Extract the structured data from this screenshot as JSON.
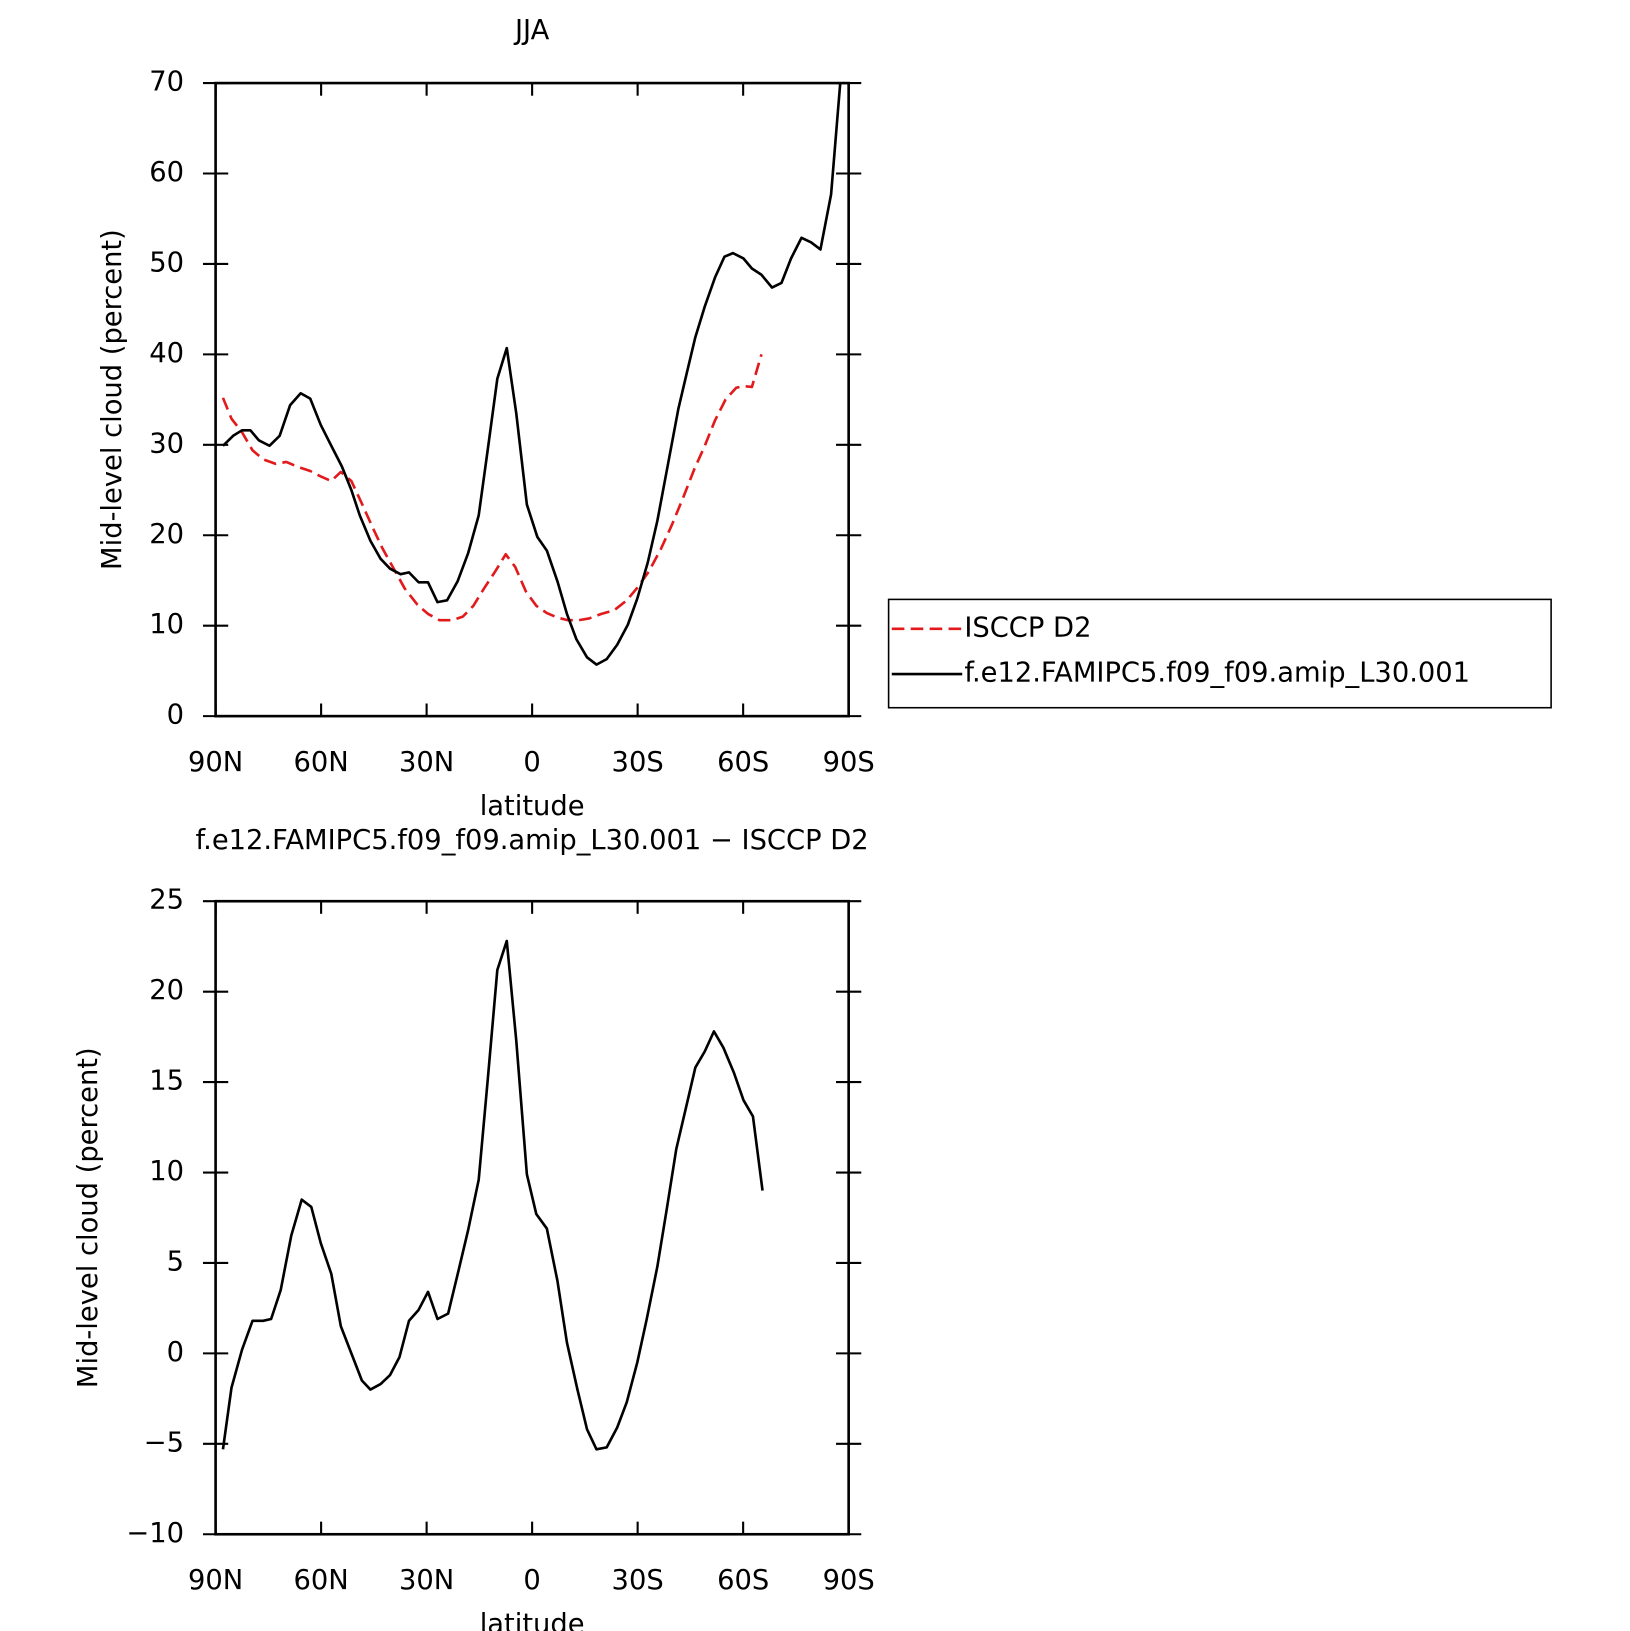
{
  "chart_data": [
    {
      "type": "line",
      "title": "JJA",
      "xlabel": "latitude",
      "ylabel": "Mid-level cloud (percent)",
      "xlim": [
        90,
        -90
      ],
      "xticks": [
        {
          "value": 90,
          "label": "90N"
        },
        {
          "value": 60,
          "label": "60N"
        },
        {
          "value": 30,
          "label": "30N"
        },
        0,
        {
          "value": -30,
          "label": "30S"
        },
        {
          "value": -60,
          "label": "60S"
        },
        {
          "value": -90,
          "label": "90S"
        }
      ],
      "ylim": [
        0,
        70
      ],
      "yticks": [
        0,
        10,
        20,
        30,
        40,
        50,
        60,
        70
      ],
      "legend": "right",
      "series": [
        {
          "name": "ISCCP D2",
          "color": "#e31a1c",
          "line_style": "dashed",
          "x": [
            87.9,
            85.5,
            82.5,
            79.5,
            76.5,
            72.9,
            69.9,
            66.9,
            63.1,
            60.1,
            57.1,
            54.4,
            51.4,
            48.4,
            45.4,
            42.5,
            39.2,
            36.2,
            32.6,
            29.6,
            26.3,
            22.7,
            19.7,
            16.7,
            13.7,
            10.5,
            7.5,
            4.8,
            1.8,
            -1.2,
            -4.2,
            -7.2,
            -10.2,
            -13.2,
            -16.2,
            -19.7,
            -23.3,
            -26.9,
            -29.9,
            -33.2,
            -36.5,
            -39.8,
            -43.1,
            -46.1,
            -49.1,
            -52.0,
            -55.0,
            -58.0,
            -60.1,
            -62.5,
            -65.2
          ],
          "values": [
            35.2,
            32.9,
            31.4,
            29.4,
            28.4,
            27.9,
            28.1,
            27.6,
            27.1,
            26.5,
            26.0,
            27.0,
            26.0,
            23.5,
            20.9,
            18.5,
            16.2,
            14.1,
            12.3,
            11.3,
            10.6,
            10.6,
            11.0,
            12.2,
            14.1,
            16.0,
            17.9,
            16.5,
            13.8,
            12.2,
            11.4,
            10.9,
            10.6,
            10.6,
            10.8,
            11.3,
            11.7,
            12.8,
            14.2,
            16.0,
            18.4,
            21.2,
            24.3,
            27.3,
            29.9,
            32.7,
            35.0,
            36.3,
            36.5,
            36.4,
            40.0
          ]
        },
        {
          "name": "f.e12.FAMIPC5.f09_f09.amip_L30.001",
          "color": "#000000",
          "line_style": "solid",
          "x": [
            87.9,
            85,
            82.5,
            80.1,
            77.7,
            74.7,
            71.8,
            68.8,
            65.8,
            63.1,
            60.1,
            57.1,
            54.1,
            51.4,
            49.0,
            46.0,
            43.1,
            40.4,
            37.4,
            35.0,
            32.3,
            29.6,
            26.9,
            24.2,
            21.2,
            18.2,
            15.2,
            12.5,
            9.9,
            7.2,
            4.5,
            1.5,
            -1.5,
            -4.2,
            -7.2,
            -9.9,
            -12.6,
            -15.6,
            -18.3,
            -21.2,
            -24.2,
            -27.2,
            -29.9,
            -32.9,
            -35.6,
            -38.6,
            -41.6,
            -44.0,
            -46.4,
            -49.1,
            -52.0,
            -54.7,
            -57.1,
            -60.1,
            -62.5,
            -65.2,
            -68.2,
            -70.9,
            -73.6,
            -76.6,
            -79.3,
            -82.0,
            -85.0,
            -87.6
          ],
          "values": [
            29.9,
            31.0,
            31.6,
            31.6,
            30.5,
            29.9,
            31.0,
            34.4,
            35.7,
            35.1,
            32.2,
            29.9,
            27.6,
            25.0,
            22.2,
            19.4,
            17.4,
            16.3,
            15.7,
            15.9,
            14.8,
            14.8,
            12.6,
            12.8,
            14.9,
            18.0,
            22.2,
            29.8,
            37.3,
            40.7,
            33.5,
            23.4,
            19.8,
            18.3,
            14.9,
            11.3,
            8.5,
            6.5,
            5.7,
            6.3,
            7.9,
            10.1,
            13.0,
            17.0,
            21.6,
            27.8,
            34.0,
            38.0,
            41.9,
            45.3,
            48.5,
            50.8,
            51.2,
            50.6,
            49.5,
            48.8,
            47.4,
            47.9,
            50.6,
            52.9,
            52.4,
            51.6,
            57.7,
            70.0
          ]
        }
      ]
    },
    {
      "type": "line",
      "title": "f.e12.FAMIPC5.f09_f09.amip_L30.001 − ISCCP D2",
      "xlabel": "latitude",
      "ylabel": "Mid-level cloud (percent)",
      "xlim": [
        90,
        -90
      ],
      "xticks": [
        {
          "value": 90,
          "label": "90N"
        },
        {
          "value": 60,
          "label": "60N"
        },
        {
          "value": 30,
          "label": "30N"
        },
        0,
        {
          "value": -30,
          "label": "30S"
        },
        {
          "value": -60,
          "label": "60S"
        },
        {
          "value": -90,
          "label": "90S"
        }
      ],
      "ylim": [
        -10,
        25
      ],
      "yticks": [
        {
          "value": -10,
          "label": "−10"
        },
        {
          "value": -5,
          "label": "−5"
        },
        0,
        5,
        10,
        15,
        20,
        25
      ],
      "color": "#000000",
      "x": [
        87.9,
        85.5,
        82.5,
        79.5,
        76.5,
        74.2,
        71.5,
        68.5,
        65.5,
        62.8,
        60.1,
        57.1,
        54.4,
        51.4,
        48.4,
        46.0,
        43.1,
        40.4,
        37.7,
        35.0,
        32.3,
        29.6,
        26.9,
        23.9,
        20.9,
        18.2,
        15.2,
        12.5,
        9.9,
        7.2,
        4.5,
        1.5,
        -1.2,
        -4.2,
        -7.2,
        -9.9,
        -12.9,
        -15.6,
        -18.3,
        -21.2,
        -24.2,
        -26.9,
        -29.9,
        -32.6,
        -35.6,
        -38.3,
        -41.0,
        -44.0,
        -46.4,
        -49.1,
        -51.7,
        -54.4,
        -57.4,
        -60.1,
        -62.8,
        -65.5
      ],
      "values": [
        -5.3,
        -1.9,
        0.2,
        1.8,
        1.8,
        1.9,
        3.5,
        6.5,
        8.5,
        8.1,
        6.1,
        4.4,
        1.5,
        0,
        -1.5,
        -2.0,
        -1.7,
        -1.2,
        -0.2,
        1.8,
        2.4,
        3.4,
        1.9,
        2.2,
        4.6,
        6.8,
        9.6,
        15.4,
        21.2,
        22.8,
        17.3,
        9.9,
        7.7,
        6.9,
        4.0,
        0.6,
        -2.0,
        -4.2,
        -5.3,
        -5.2,
        -4.1,
        -2.7,
        -0.5,
        1.9,
        4.8,
        8.0,
        11.3,
        13.8,
        15.8,
        16.7,
        17.8,
        16.9,
        15.5,
        14.0,
        13.1,
        9.0
      ]
    }
  ]
}
